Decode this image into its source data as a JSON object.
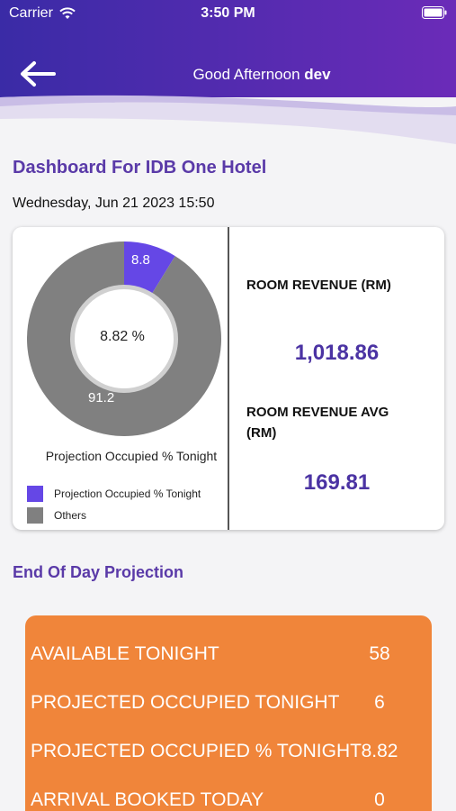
{
  "status_bar": {
    "carrier": "Carrier",
    "time": "3:50 PM"
  },
  "header": {
    "greeting": "Good Afternoon",
    "username": "dev"
  },
  "dashboard": {
    "title": "Dashboard For IDB One Hotel",
    "datetime": "Wednesday, Jun 21 2023 15:50"
  },
  "chart": {
    "center_label": "8.82 %",
    "caption": "Projection Occupied % Tonight",
    "slice_labels": [
      "8.8",
      "91.2"
    ]
  },
  "chart_data": {
    "type": "pie",
    "categories": [
      "Projection Occupied % Tonight",
      "Others"
    ],
    "values": [
      8.8,
      91.2
    ],
    "colors": [
      "#6547e6",
      "#808080"
    ],
    "center_text": "8.82 %",
    "caption": "Projection Occupied % Tonight",
    "legend_position": "bottom-left"
  },
  "legend": [
    {
      "label": "Projection Occupied % Tonight",
      "color": "#6547e6"
    },
    {
      "label": "Others",
      "color": "#808080"
    }
  ],
  "metrics": {
    "room_revenue_label": "ROOM REVENUE (RM)",
    "room_revenue_value": "1,018.86",
    "room_revenue_avg_label_line1": "ROOM REVENUE AVG",
    "room_revenue_avg_label_line2": "(RM)",
    "room_revenue_avg_value": "169.81"
  },
  "eod": {
    "title": "End Of Day Projection",
    "rows": [
      {
        "label": "AVAILABLE TONIGHT",
        "value": "58"
      },
      {
        "label": "PROJECTED OCCUPIED TONIGHT",
        "value": "6"
      },
      {
        "label": "PROJECTED OCCUPIED % TONIGHT",
        "value": "8.82"
      },
      {
        "label": "ARRIVAL BOOKED TODAY",
        "value": "0"
      }
    ]
  },
  "colors": {
    "primary": "#5a3aa8",
    "accent_orange": "#f0853a",
    "header_gradient": [
      "#3a2ba6",
      "#6b2bb8"
    ]
  }
}
